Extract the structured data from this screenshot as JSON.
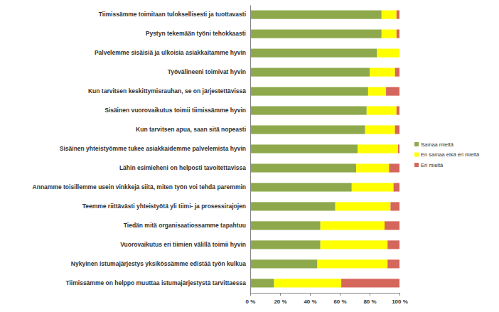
{
  "chart_data": {
    "type": "bar",
    "orientation": "horizontal",
    "stacked": true,
    "grid": false,
    "legend": "right",
    "data_labels": false,
    "categories": [
      "Tiimissämme toimitaan tuloksellisesti ja tuottavasti",
      "Pystyn tekemään työni tehokkaasti",
      "Palvelemme sisäisiä ja ulkoisia asiakkaitamme hyvin",
      "Työvälineeni toimivat hyvin",
      "Kun tarvitsen keskittymisrauhan, se on järjestettävissä",
      "Sisäinen vuorovaikutus toimii tiimissämme hyvin",
      "Kun tarvitsen apua, saan sitä nopeasti",
      "Sisäinen yhteistyömme tukee asiakkaidemme palvelemista hyvin",
      "Lähin esimieheni on helposti tavoitettavissa",
      "Annamme toisillemme usein vinkkejä siitä, miten työn voi tehdä paremmin",
      "Teemme riittävästi yhteistyötä yli tiimi- ja prosessirajojen",
      "Tiedän mitä organisaatiossamme tapahtuu",
      "Vuorovaikutus eri tiimien välillä toimii hyvin",
      "Nykyinen istumajärjestys yksikössämme edistää työn kulkua",
      "Tiimissämme on helppo muuttaa istumajärjestystä tarvittaessa"
    ],
    "series": [
      {
        "name": "Samaa mieltä",
        "color": "#8ea94c",
        "values": [
          88,
          88,
          85,
          80,
          79,
          78,
          77,
          72,
          71,
          68,
          57,
          47,
          47,
          45,
          16
        ]
      },
      {
        "name": "En samaa eikä eri mieltä",
        "color": "#ffff00",
        "values": [
          10,
          10,
          15,
          17,
          12,
          20,
          20,
          27,
          22,
          28,
          37,
          43,
          45,
          47,
          45
        ]
      },
      {
        "name": "Eri mieltä",
        "color": "#d5665c",
        "values": [
          2,
          2,
          0,
          3,
          9,
          2,
          3,
          1,
          7,
          4,
          6,
          10,
          8,
          8,
          39
        ]
      }
    ],
    "xlim": [
      0,
      100
    ],
    "xticks": [
      {
        "value": 0,
        "label": "0 %"
      },
      {
        "value": 20,
        "label": "20 %"
      },
      {
        "value": 40,
        "label": "40 %"
      },
      {
        "value": 60,
        "label": "60 %"
      },
      {
        "value": 80,
        "label": "80 %"
      },
      {
        "value": 100,
        "label": "100 %"
      }
    ]
  }
}
